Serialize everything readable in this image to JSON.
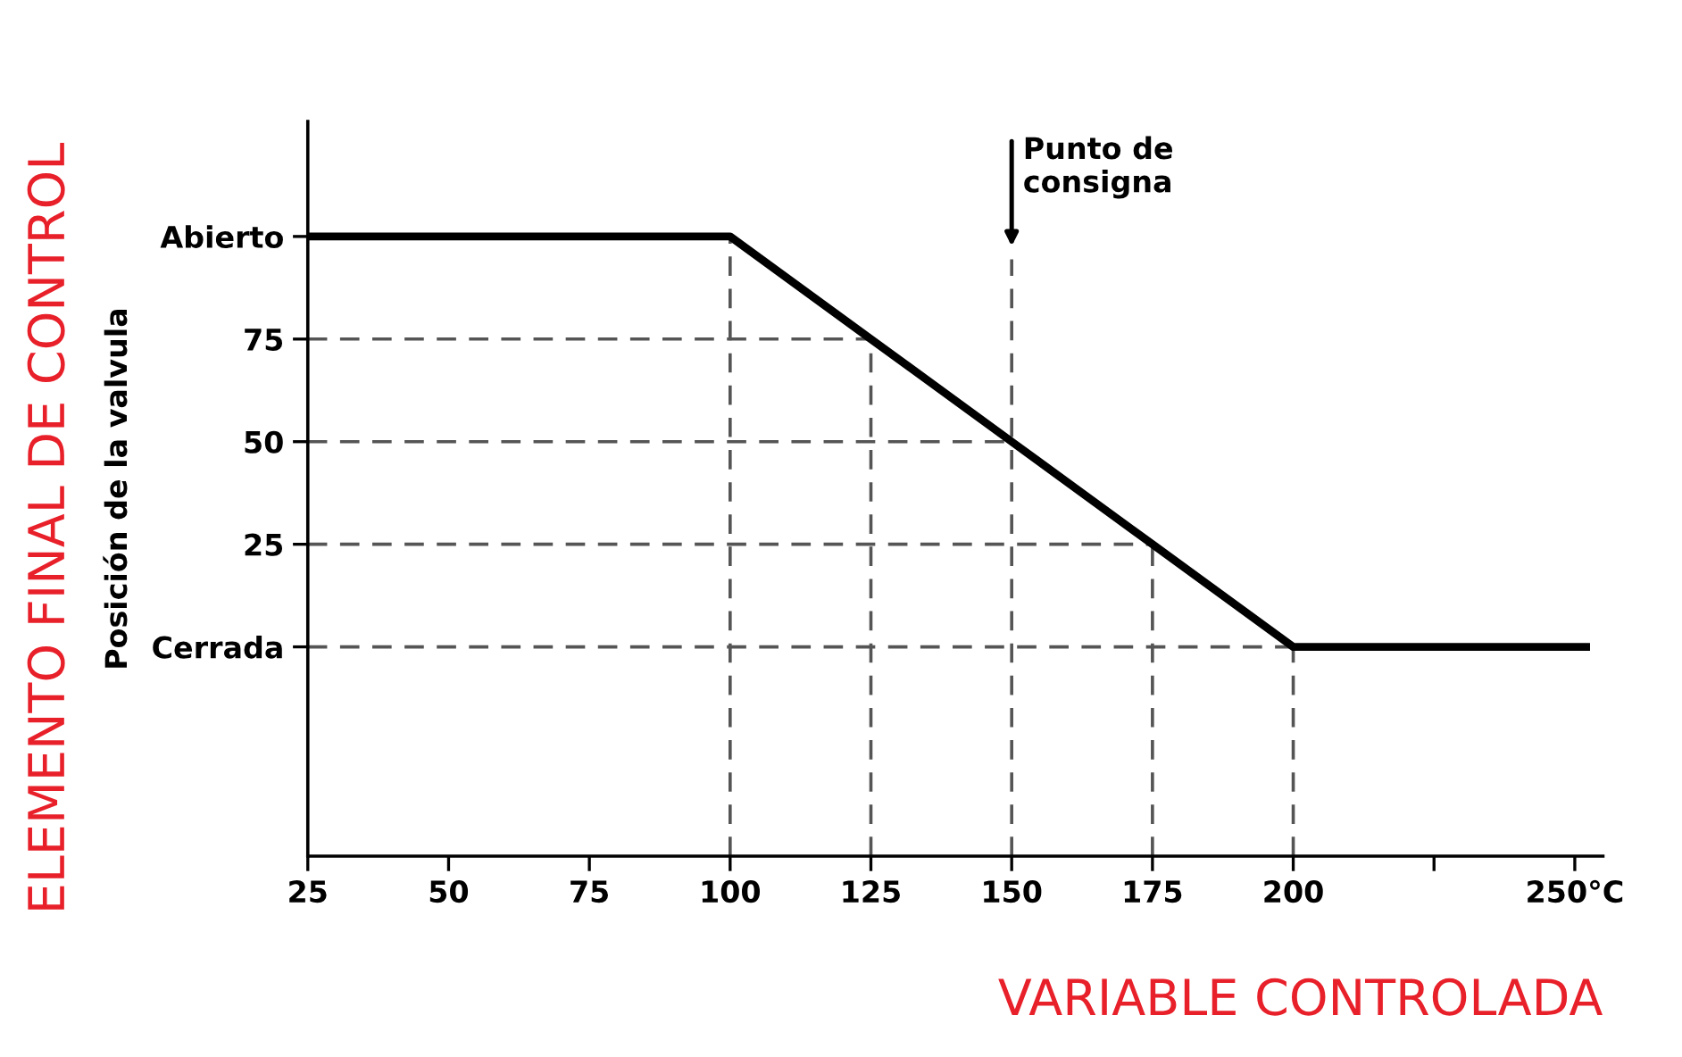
{
  "chart_data": {
    "type": "line",
    "xlabel": "VARIABLE CONTROLADA",
    "ylabel": "Posición de la valvula",
    "annotations": [
      "ELEMENTO FINAL DE CONTROL"
    ],
    "x": [
      25,
      100,
      125,
      150,
      175,
      200,
      252
    ],
    "series": [
      {
        "color": "#000000",
        "values": [
          100,
          100,
          75,
          50,
          25,
          0,
          0
        ]
      }
    ],
    "xlim": [
      25,
      255
    ],
    "ylim": [
      -51,
      128
    ],
    "xticks": [
      25,
      50,
      75,
      100,
      125,
      150,
      175,
      200,
      {
        "value": 225,
        "label": null
      },
      {
        "value": 250,
        "label": "250°C"
      }
    ],
    "yticks": [
      {
        "value": 0,
        "label": "Cerrada"
      },
      25,
      50,
      75,
      {
        "value": 100,
        "label": "Abierto"
      }
    ],
    "ref_lines": [
      {
        "axis": "y",
        "value": 75,
        "color": "#555555",
        "line_style": "dashed"
      },
      {
        "axis": "y",
        "value": 50,
        "color": "#555555",
        "line_style": "dashed"
      },
      {
        "axis": "y",
        "value": 25,
        "color": "#555555",
        "line_style": "dashed"
      },
      {
        "axis": "y",
        "value": 0,
        "color": "#555555",
        "line_style": "dashed"
      },
      {
        "axis": "x",
        "value": 100,
        "color": "#555555",
        "line_style": "dashed"
      },
      {
        "axis": "x",
        "value": 125,
        "color": "#555555",
        "line_style": "dashed"
      },
      {
        "axis": "x",
        "value": 150,
        "color": "#555555",
        "line_style": "dashed",
        "label": "Punto de\nconsigna"
      },
      {
        "axis": "x",
        "value": 175,
        "color": "#555555",
        "line_style": "dashed"
      },
      {
        "axis": "x",
        "value": 200,
        "color": "#555555",
        "line_style": "dashed"
      }
    ],
    "grid": false,
    "legend": false,
    "marker": "none",
    "line_style": "solid"
  }
}
